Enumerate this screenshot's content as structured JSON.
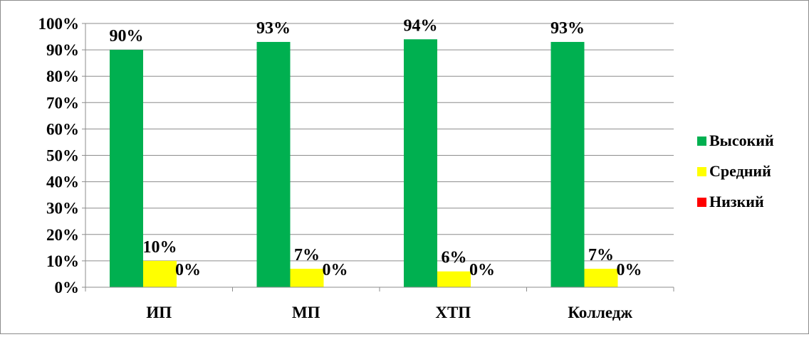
{
  "chart_data": {
    "type": "bar",
    "categories": [
      "ИП",
      "МП",
      "ХТП",
      "Колледж"
    ],
    "series": [
      {
        "name": "Высокий",
        "color": "#00b050",
        "values": [
          90,
          93,
          94,
          93
        ]
      },
      {
        "name": "Средний",
        "color": "#ffff00",
        "values": [
          10,
          7,
          6,
          7
        ]
      },
      {
        "name": "Низкий",
        "color": "#ff0000",
        "values": [
          0,
          0,
          0,
          0
        ]
      }
    ],
    "value_unit": "%",
    "ylim": [
      0,
      100
    ],
    "yticks": [
      "0%",
      "10%",
      "20%",
      "30%",
      "40%",
      "50%",
      "60%",
      "70%",
      "80%",
      "90%",
      "100%"
    ],
    "grid": true,
    "legend": "right",
    "data_labels": [
      [
        "90%",
        "10%",
        "0%"
      ],
      [
        "93%",
        "7%",
        "0%"
      ],
      [
        "94%",
        "6%",
        "0%"
      ],
      [
        "93%",
        "7%",
        "0%"
      ]
    ]
  }
}
